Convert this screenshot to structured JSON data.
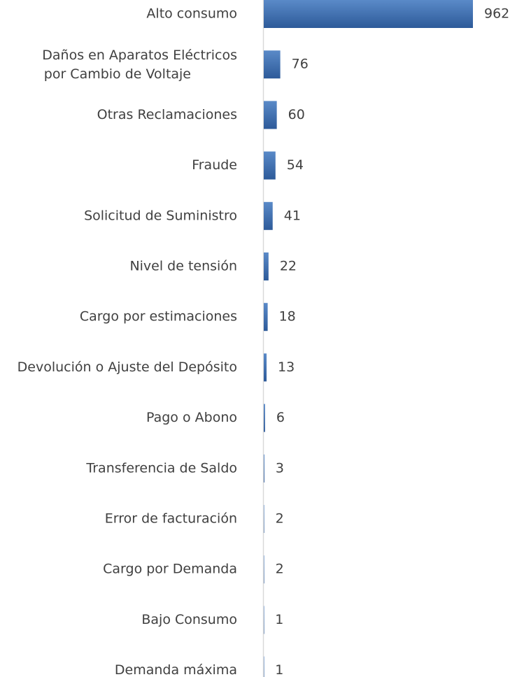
{
  "chart_data": {
    "type": "bar",
    "orientation": "horizontal",
    "color": "#4472c4",
    "categories": [
      "Alto consumo",
      "Daños en Aparatos Eléctricos por Cambio de Voltaje",
      "Otras Reclamaciones",
      "Fraude",
      "Solicitud de Suministro",
      "Nivel de tensión",
      "Cargo por estimaciones",
      "Devolución o Ajuste del Depósito",
      "Pago o Abono",
      "Transferencia de Saldo",
      "Error de facturación",
      "Cargo por Demanda",
      "Bajo Consumo",
      "Demanda máxima"
    ],
    "values": [
      962,
      76,
      60,
      54,
      41,
      22,
      18,
      13,
      6,
      3,
      2,
      2,
      1,
      1
    ]
  }
}
